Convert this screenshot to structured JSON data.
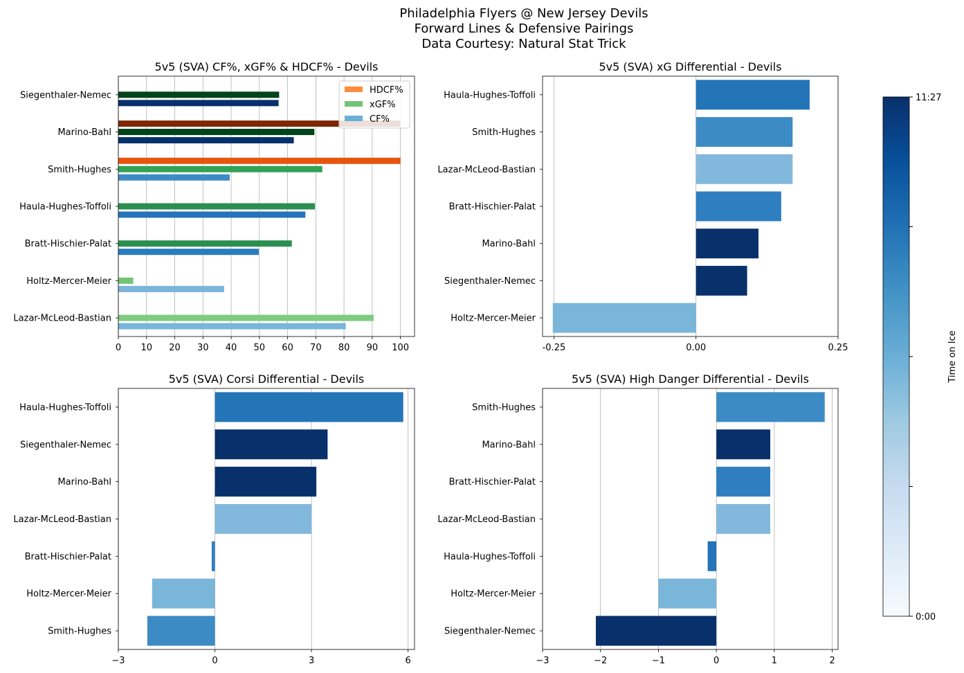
{
  "figure": {
    "title_lines": [
      "Philadelphia Flyers @ New Jersey Devils",
      "Forward Lines & Defensive Pairings",
      "Data Courtesy: Natural Stat Trick"
    ]
  },
  "colorbar": {
    "label": "Time on Ice",
    "min_label": "0:00",
    "max_label": "11:27",
    "colormap": "Blues"
  },
  "chart_data": [
    {
      "type": "bar",
      "orientation": "horizontal-grouped",
      "title": "5v5 (SVA) CF%, xGF% & HDCF% - Devils",
      "categories": [
        "Siegenthaler-Nemec",
        "Marino-Bahl",
        "Smith-Hughes",
        "Haula-Hughes-Toffoli",
        "Bratt-Hischier-Palat",
        "Holtz-Mercer-Meier",
        "Lazar-McLeod-Bastian"
      ],
      "xlim": [
        0,
        105
      ],
      "xticks": [
        0,
        10,
        20,
        30,
        40,
        50,
        60,
        70,
        80,
        90,
        100
      ],
      "grid": "x",
      "legend_position": "upper-right",
      "series": [
        {
          "name": "HDCF%",
          "color": "#fd8d3c",
          "values": [
            0,
            100,
            100,
            0,
            0,
            0,
            0
          ],
          "bar_colors": [
            "#7f2704",
            "#7f2704",
            "#e6550d",
            "#e6550d",
            "#e6550d",
            "#fdae6b",
            "#fdae6b"
          ]
        },
        {
          "name": "xGF%",
          "color": "#74c476",
          "values": [
            57,
            69.5,
            72.3,
            69.7,
            61.5,
            5.3,
            90.5
          ],
          "bar_colors": [
            "#00441b",
            "#00441b",
            "#31a354",
            "#2b8f4f",
            "#2b8f4f",
            "#74c476",
            "#7fcc80"
          ]
        },
        {
          "name": "CF%",
          "color": "#6baed6",
          "values": [
            56.8,
            62.2,
            39.5,
            66.3,
            49.8,
            37.5,
            80.6
          ],
          "bar_colors": [
            "#08306b",
            "#08306b",
            "#3d8bc4",
            "#2474b8",
            "#2a7bbf",
            "#7ab5da",
            "#7ab5da"
          ]
        }
      ]
    },
    {
      "type": "bar",
      "orientation": "horizontal",
      "title": "5v5 (SVA) xG Differential - Devils",
      "categories": [
        "Haula-Hughes-Toffoli",
        "Smith-Hughes",
        "Lazar-McLeod-Bastian",
        "Bratt-Hischier-Palat",
        "Marino-Bahl",
        "Siegenthaler-Nemec",
        "Holtz-Mercer-Meier"
      ],
      "values": [
        0.2,
        0.17,
        0.17,
        0.15,
        0.11,
        0.09,
        -0.252
      ],
      "bar_colors": [
        "#2474b8",
        "#3d8bc4",
        "#82b8db",
        "#2f7fc0",
        "#08306b",
        "#08306b",
        "#7ab5da"
      ],
      "xlim": [
        -0.27,
        0.25
      ],
      "xticks": [
        -0.25,
        0.0,
        0.25
      ],
      "xtick_labels": [
        "-0.25",
        "0.00",
        "0.25"
      ],
      "grid": "x"
    },
    {
      "type": "bar",
      "orientation": "horizontal",
      "title": "5v5 (SVA) Corsi Differential - Devils",
      "categories": [
        "Haula-Hughes-Toffoli",
        "Siegenthaler-Nemec",
        "Marino-Bahl",
        "Lazar-McLeod-Bastian",
        "Bratt-Hischier-Palat",
        "Holtz-Mercer-Meier",
        "Smith-Hughes"
      ],
      "values": [
        5.85,
        3.5,
        3.15,
        3.0,
        -0.1,
        -1.95,
        -2.1
      ],
      "bar_colors": [
        "#2474b8",
        "#08306b",
        "#08306b",
        "#82b8db",
        "#2f7fc0",
        "#7ab5da",
        "#3d8bc4"
      ],
      "xlim": [
        -3,
        6.2
      ],
      "xticks": [
        -3,
        0,
        3,
        6
      ],
      "xtick_labels": [
        "−3",
        "0",
        "3",
        "6"
      ],
      "grid": "x"
    },
    {
      "type": "bar",
      "orientation": "horizontal",
      "title": "5v5 (SVA) High Danger Differential - Devils",
      "categories": [
        "Smith-Hughes",
        "Marino-Bahl",
        "Bratt-Hischier-Palat",
        "Lazar-McLeod-Bastian",
        "Haula-Hughes-Toffoli",
        "Holtz-Mercer-Meier",
        "Siegenthaler-Nemec"
      ],
      "values": [
        1.87,
        0.93,
        0.93,
        0.93,
        -0.15,
        -1.0,
        -2.08
      ],
      "bar_colors": [
        "#3d8bc4",
        "#08306b",
        "#2f7fc0",
        "#82b8db",
        "#2474b8",
        "#7ab5da",
        "#08306b"
      ],
      "xlim": [
        -3,
        2.1
      ],
      "xticks": [
        -3,
        -2,
        -1,
        0,
        1,
        2
      ],
      "xtick_labels": [
        "−3",
        "−2",
        "−1",
        "0",
        "1",
        "2"
      ],
      "grid": "x"
    }
  ]
}
